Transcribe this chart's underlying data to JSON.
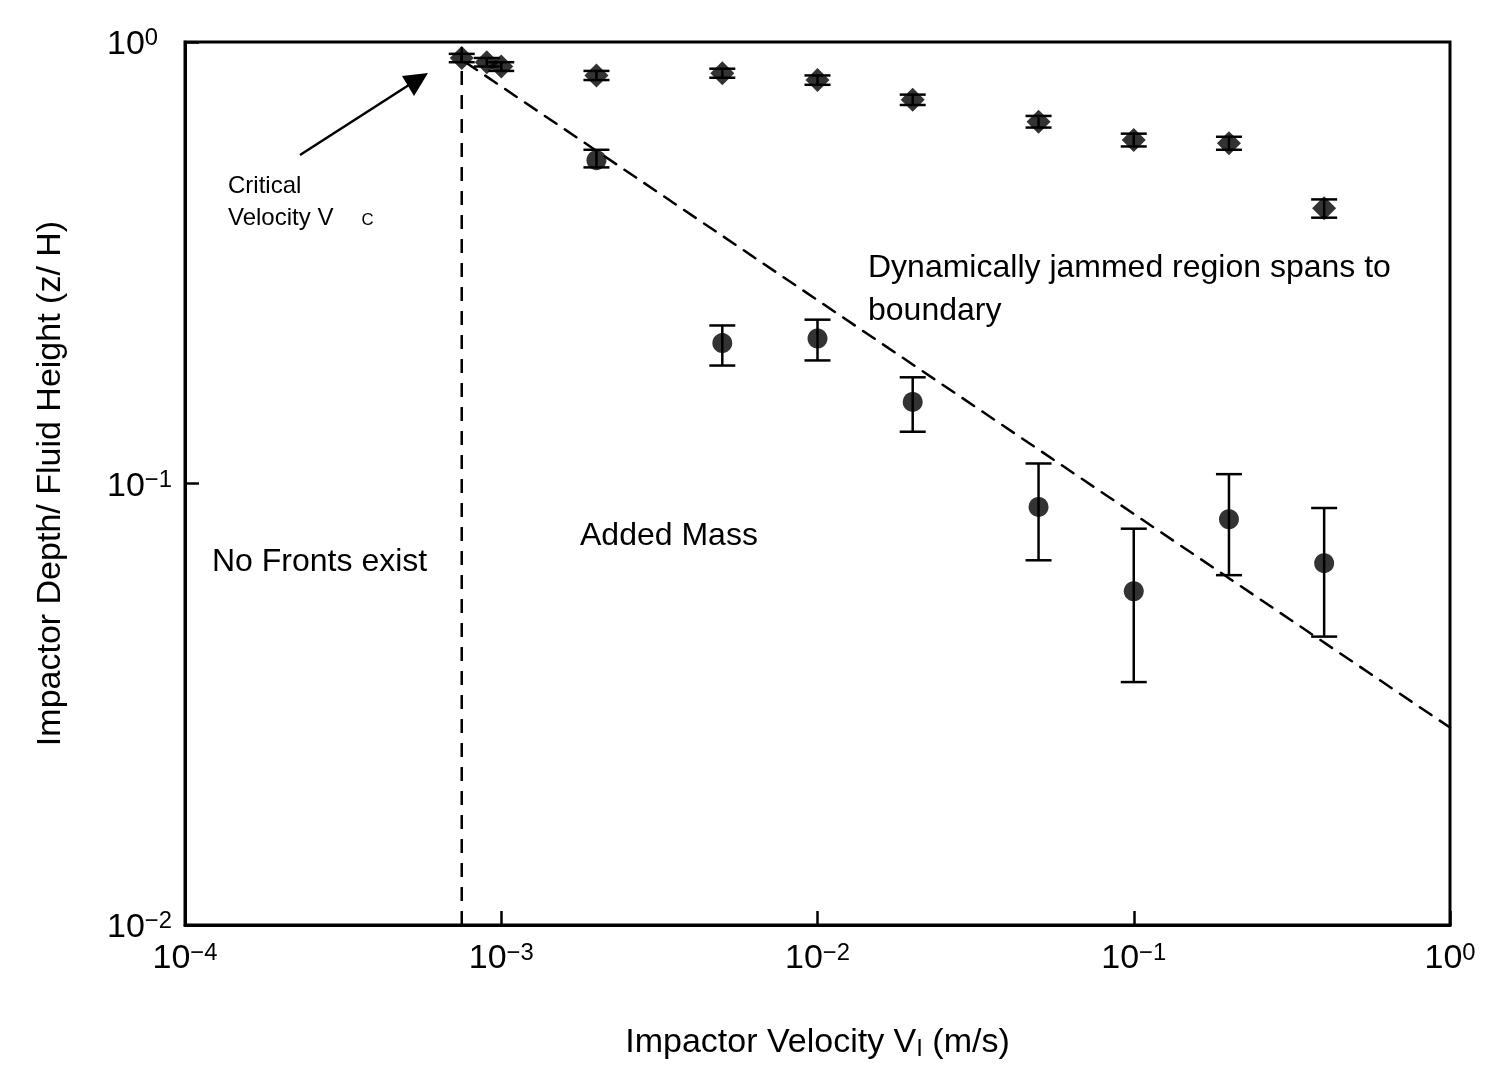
{
  "chart_data": {
    "type": "scatter",
    "xlabel": "Impactor Velocity V$_{I}$ (m/s)",
    "ylabel": "Impactor Depth/ Fluid Height (z/ H)",
    "log": "xy",
    "xlim": [
      0.0001,
      1
    ],
    "ylim": [
      0.01,
      1
    ],
    "xticks": [
      {
        "value": 0.0001,
        "label": "10$^{−4}$"
      },
      {
        "value": 0.001,
        "label": "10$^{−3}$"
      },
      {
        "value": 0.01,
        "label": "10$^{−2}$"
      },
      {
        "value": 0.1,
        "label": "10$^{−1}$"
      },
      {
        "value": 1,
        "label": "10$^{0}$"
      }
    ],
    "yticks": [
      {
        "value": 0.01,
        "label": "10$^{−2}$"
      },
      {
        "value": 0.1,
        "label": "10$^{−1}$"
      },
      {
        "value": 1,
        "label": "10$^{0}$"
      }
    ],
    "series": [
      {
        "marker": "circle",
        "color": "#000000",
        "x": [
          0.002,
          0.005,
          0.01,
          0.02,
          0.05,
          0.1,
          0.2,
          0.4
        ],
        "values": [
          0.54,
          0.208,
          0.213,
          0.153,
          0.0885,
          0.057,
          0.083,
          0.066
        ],
        "errors": [
          [
            0.52,
            0.57
          ],
          [
            0.185,
            0.228
          ],
          [
            0.19,
            0.235
          ],
          [
            0.131,
            0.174
          ],
          [
            0.067,
            0.111
          ],
          [
            0.0355,
            0.079
          ],
          [
            0.062,
            0.105
          ],
          [
            0.045,
            0.088
          ]
        ]
      },
      {
        "marker": "diamond",
        "color": "#000000",
        "x": [
          0.00075,
          0.0009,
          0.001,
          0.002,
          0.005,
          0.01,
          0.02,
          0.05,
          0.1,
          0.2,
          0.4
        ],
        "values": [
          0.92,
          0.9,
          0.88,
          0.84,
          0.85,
          0.82,
          0.74,
          0.66,
          0.6,
          0.59,
          0.42
        ],
        "errors": [
          0.02,
          0.02,
          0.02,
          0.02,
          0.02,
          0.02,
          0.02,
          0.02,
          0.02,
          0.02,
          0.02
        ]
      },
      {
        "type": "line",
        "marker": "none",
        "line_style": "dashed",
        "color": "#000000",
        "x": [
          0.00077,
          1
        ],
        "values": [
          0.9,
          0.028
        ]
      }
    ],
    "ref_lines": [
      {
        "axis": "x",
        "value": 0.00075,
        "line_style": "dashed",
        "color": "#000000"
      }
    ],
    "annotations": [
      "Critical Velocity V$_{C}$",
      "No Fronts exist",
      "Added Mass",
      "Dynamically jammed region spans to boundary"
    ]
  }
}
